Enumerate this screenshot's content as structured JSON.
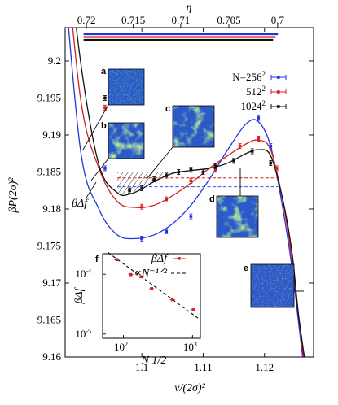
{
  "chart_data": [
    {
      "type": "line",
      "xlabel": "v/(2σ)²",
      "ylabel": "βP(2σ)²",
      "top_axis_label": "η",
      "xlim": [
        1.0875,
        1.128
      ],
      "ylim": [
        9.16,
        9.2045
      ],
      "x_ticks": [
        1.1,
        1.11,
        1.12
      ],
      "y_ticks": [
        9.16,
        9.165,
        9.17,
        9.175,
        9.18,
        9.185,
        9.19,
        9.195,
        9.2
      ],
      "top_ticks": [
        "0.72",
        "0.715",
        "0.71",
        "0.705",
        "0.7"
      ],
      "top_tick_eta": [
        0.72,
        0.715,
        0.71,
        0.705,
        0.7
      ],
      "legend_prefix": "N=",
      "legend_labels": [
        "256",
        "512",
        "1024"
      ],
      "legend_exponent": "2",
      "annotation_label": "βΔf",
      "series": [
        {
          "name": "256²",
          "color": "#2233e0",
          "coexistence_pressure": 9.183,
          "x": [
            1.087,
            1.09,
            1.093,
            1.096,
            1.099,
            1.102,
            1.105,
            1.108,
            1.111,
            1.114,
            1.117,
            1.119,
            1.121,
            1.123,
            1.1245,
            1.1255,
            1.1265
          ],
          "y": [
            9.215,
            9.188,
            9.18,
            9.1765,
            9.176,
            9.1765,
            9.178,
            9.1805,
            9.184,
            9.188,
            9.1915,
            9.1918,
            9.1885,
            9.18,
            9.172,
            9.165,
            9.158
          ],
          "points_x": [
            1.094,
            1.1,
            1.104,
            1.108,
            1.119,
            1.121,
            1.1245
          ],
          "points_y": [
            9.1855,
            9.176,
            9.177,
            9.179,
            9.1923,
            9.1885,
            9.1695
          ]
        },
        {
          "name": "512²",
          "color": "#d42020",
          "coexistence_pressure": 9.1842,
          "x": [
            1.087,
            1.09,
            1.093,
            1.096,
            1.099,
            1.102,
            1.105,
            1.108,
            1.111,
            1.114,
            1.117,
            1.119,
            1.121,
            1.123,
            1.1245,
            1.1255,
            1.1265
          ],
          "y": [
            9.22,
            9.195,
            9.1855,
            9.181,
            9.1802,
            9.1805,
            9.1818,
            9.1835,
            9.1855,
            9.1872,
            9.1888,
            9.1893,
            9.188,
            9.181,
            9.173,
            9.166,
            9.159
          ],
          "points_x": [
            1.094,
            1.1,
            1.104,
            1.108,
            1.112,
            1.116,
            1.119,
            1.122,
            1.1245
          ],
          "points_y": [
            9.1937,
            9.1803,
            9.1813,
            9.1838,
            9.1853,
            9.1885,
            9.1895,
            9.1855,
            9.1698
          ]
        },
        {
          "name": "1024²",
          "color": "#111111",
          "coexistence_pressure": 9.185,
          "x": [
            1.087,
            1.09,
            1.093,
            1.096,
            1.098,
            1.1,
            1.102,
            1.105,
            1.108,
            1.111,
            1.114,
            1.117,
            1.119,
            1.121,
            1.123,
            1.1245,
            1.1255,
            1.1265
          ],
          "y": [
            9.222,
            9.2,
            9.186,
            9.1822,
            9.182,
            9.1827,
            9.1837,
            9.1848,
            9.1852,
            9.1855,
            9.1862,
            9.1875,
            9.188,
            9.1872,
            9.1812,
            9.174,
            9.166,
            9.16
          ],
          "points_x": [
            1.094,
            1.098,
            1.1,
            1.102,
            1.104,
            1.106,
            1.108,
            1.11,
            1.112,
            1.115,
            1.118,
            1.121,
            1.1245
          ],
          "points_y": [
            9.195,
            9.1825,
            9.1828,
            9.184,
            9.1845,
            9.185,
            9.1853,
            9.185,
            9.1858,
            9.1865,
            9.1878,
            9.1862,
            9.1702
          ]
        }
      ]
    },
    {
      "type": "scatter",
      "xlabel": "N 1/2",
      "ylabel": "βΔf",
      "log_x": true,
      "log_y": true,
      "xlim": [
        50,
        1300
      ],
      "ylim": [
        8.5e-06,
        0.00022
      ],
      "x_tick_labels": [
        [
          "10",
          "2"
        ],
        [
          "10",
          "3"
        ]
      ],
      "y_tick_labels": [
        [
          "10",
          "-4"
        ],
        [
          "10",
          "-5"
        ]
      ],
      "legend": [
        "βΔf",
        "∝N⁻¹ᐟ²"
      ],
      "points": [
        {
          "x": 80,
          "y": 0.000175
        },
        {
          "x": 128,
          "y": 9.85e-05
        },
        {
          "x": 180,
          "y": 9.05e-05
        },
        {
          "x": 256,
          "y": 5.75e-05
        },
        {
          "x": 512,
          "y": 3.75e-05
        },
        {
          "x": 1024,
          "y": 2.55e-05
        }
      ],
      "fit_line": {
        "x": [
          60,
          1200
        ],
        "y": [
          0.00023,
          1.85e-05
        ]
      }
    }
  ],
  "snapshot_panels": [
    "a",
    "b",
    "c",
    "d",
    "e"
  ],
  "inset_label": "f",
  "colors": {
    "blue": "#2233e0",
    "red": "#d42020",
    "black": "#111111",
    "snapshot_bg": "#2a59c8"
  }
}
